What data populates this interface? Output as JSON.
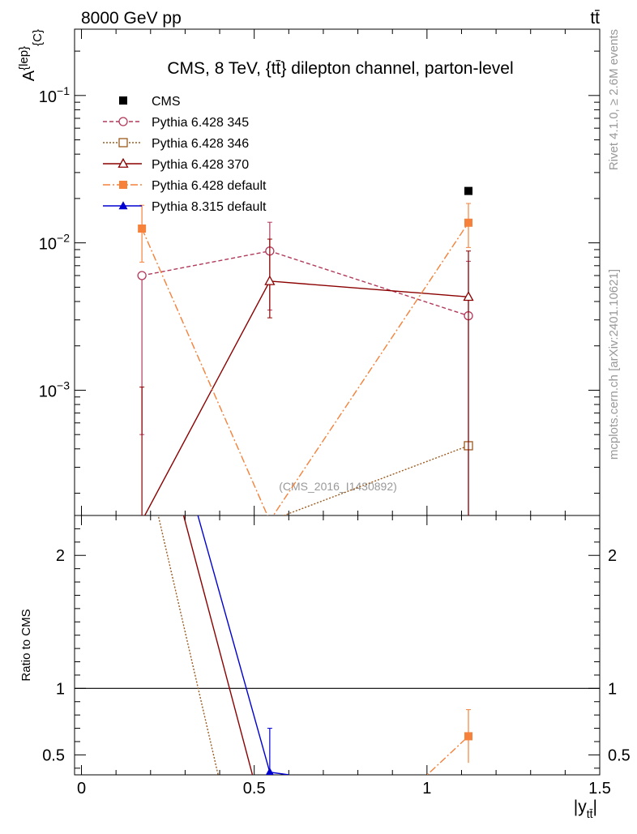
{
  "header": {
    "left": "8000 GeV pp",
    "right": "tt̄"
  },
  "side": {
    "top": "Rivet 4.1.0, ≥ 2.6M events",
    "bottom": "mcplots.cern.ch [arXiv:2401.10621]"
  },
  "chart_data": {
    "type": "scatter",
    "title": "CMS, 8 TeV, {tt̄} dilepton channel, parton-level",
    "watermark": "(CMS_2016_I1430892)",
    "ylabel_main": "A^{lep}_{C}",
    "ylabel_ratio": "Ratio to CMS",
    "xlabel": "|y_tt̄|",
    "xlim": [
      -0.02,
      1.5
    ],
    "ylim_main_log10": [
      -3.85,
      -0.55
    ],
    "ylim_ratio": [
      0.35,
      2.3
    ],
    "x_ticks": [
      0,
      0.5,
      1,
      1.5
    ],
    "x_tick_labels": [
      "0",
      "0.5",
      "1",
      "1.5"
    ],
    "y_ticks_main": [
      -3,
      -2,
      -1
    ],
    "y_tick_labels_main": [
      {
        "base": "10",
        "exp": "−3"
      },
      {
        "base": "10",
        "exp": "−2"
      },
      {
        "base": "10",
        "exp": "−1"
      }
    ],
    "y_ticks_ratio": [
      0.5,
      1,
      2
    ],
    "y_tick_labels_ratio": [
      "0.5",
      "1",
      "2"
    ],
    "x": [
      0.175,
      0.545,
      1.12
    ],
    "series": [
      {
        "name": "CMS",
        "key": "cms",
        "color": "#000000",
        "dash": "",
        "marker": "square-filled",
        "values": [
          null,
          null,
          0.0225
        ],
        "lo": [
          null,
          null,
          null
        ],
        "hi": [
          null,
          null,
          null
        ],
        "ratio": [
          null,
          null,
          null
        ]
      },
      {
        "name": "Pythia 6.428 345",
        "key": "p345",
        "color": "#b1395a",
        "dash": "5,3",
        "marker": "circle-open",
        "values": [
          0.006,
          0.0088,
          0.0032
        ],
        "lo": [
          0.0005,
          0.0035,
          0.00013
        ],
        "hi": [
          0.006,
          0.0138,
          0.0075
        ],
        "ratio": [
          null,
          null,
          null
        ]
      },
      {
        "name": "Pythia 6.428 346",
        "key": "p346",
        "color": "#9c5a1f",
        "dash": "2,2",
        "marker": "square-open",
        "values": [
          0.00013,
          0.00013,
          0.00042
        ],
        "lo": [
          null,
          null,
          null
        ],
        "hi": [
          null,
          null,
          null
        ],
        "ratio": [
          2.3,
          null,
          null
        ]
      },
      {
        "name": "Pythia 6.428 370",
        "key": "p370",
        "color": "#8b0000",
        "dash": "",
        "marker": "triangle-open",
        "values": [
          0.00013,
          0.0055,
          0.0043
        ],
        "lo": [
          0.00013,
          0.0031,
          0.00013
        ],
        "hi": [
          0.00105,
          0.0106,
          0.0088
        ],
        "ratio": [
          2.3,
          null,
          null
        ]
      },
      {
        "name": "Pythia 6.428 default",
        "key": "pdef",
        "color": "#f5813a",
        "dash": "9,3,2,3",
        "marker": "square-filled",
        "values": [
          0.0125,
          0.00013,
          0.0137
        ],
        "lo": [
          0.0074,
          null,
          0.0093
        ],
        "hi": [
          0.018,
          null,
          0.0185
        ],
        "ratio": [
          null,
          null,
          0.64
        ],
        "ratio_lo": [
          null,
          null,
          0.44
        ],
        "ratio_hi": [
          null,
          null,
          0.84
        ]
      },
      {
        "name": "Pythia 8.315 default",
        "key": "p8",
        "color": "#0000d0",
        "dash": "",
        "marker": "triangle-filled",
        "values": [
          0.00013,
          0.00013,
          0.00013
        ],
        "lo": [
          null,
          null,
          null
        ],
        "hi": [
          null,
          null,
          null
        ],
        "ratio": [
          2.3,
          0.37,
          null
        ],
        "ratio_lo": [
          null,
          0.35,
          null
        ],
        "ratio_hi": [
          null,
          0.7,
          null
        ]
      }
    ]
  }
}
